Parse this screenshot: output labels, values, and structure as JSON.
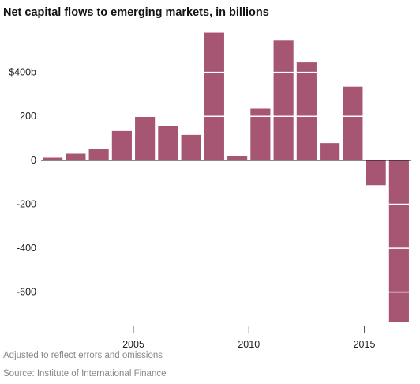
{
  "chart_data": {
    "type": "bar",
    "title": "Net capital flows to emerging markets, in billions",
    "xlabel": "",
    "ylabel": "",
    "categories": [
      "2001",
      "2002",
      "2003",
      "2004",
      "2005",
      "2006",
      "2007",
      "2008",
      "2009",
      "2010",
      "2011",
      "2012",
      "2013",
      "2014",
      "2015",
      "2016"
    ],
    "values": [
      12,
      30,
      53,
      133,
      200,
      155,
      115,
      580,
      20,
      235,
      545,
      445,
      78,
      335,
      -113,
      -735
    ],
    "ylim": [
      -745,
      600
    ],
    "y_ticks": [
      {
        "value": 400,
        "label": "$400b"
      },
      {
        "value": 200,
        "label": "200"
      },
      {
        "value": 0,
        "label": "0"
      },
      {
        "value": -200,
        "label": "-200"
      },
      {
        "value": -400,
        "label": "-400"
      },
      {
        "value": -600,
        "label": "-600"
      }
    ],
    "x_tick_labels": [
      {
        "category": "2005",
        "label": "2005"
      },
      {
        "category": "2010",
        "label": "2010"
      },
      {
        "category": "2015",
        "label": "2015"
      }
    ],
    "bar_color": "#a65672",
    "gridlines": "white, drawn across bars at y-tick values",
    "notes": [
      "Adjusted to reflect errors and omissions",
      "Source: Institute of International Finance"
    ]
  }
}
